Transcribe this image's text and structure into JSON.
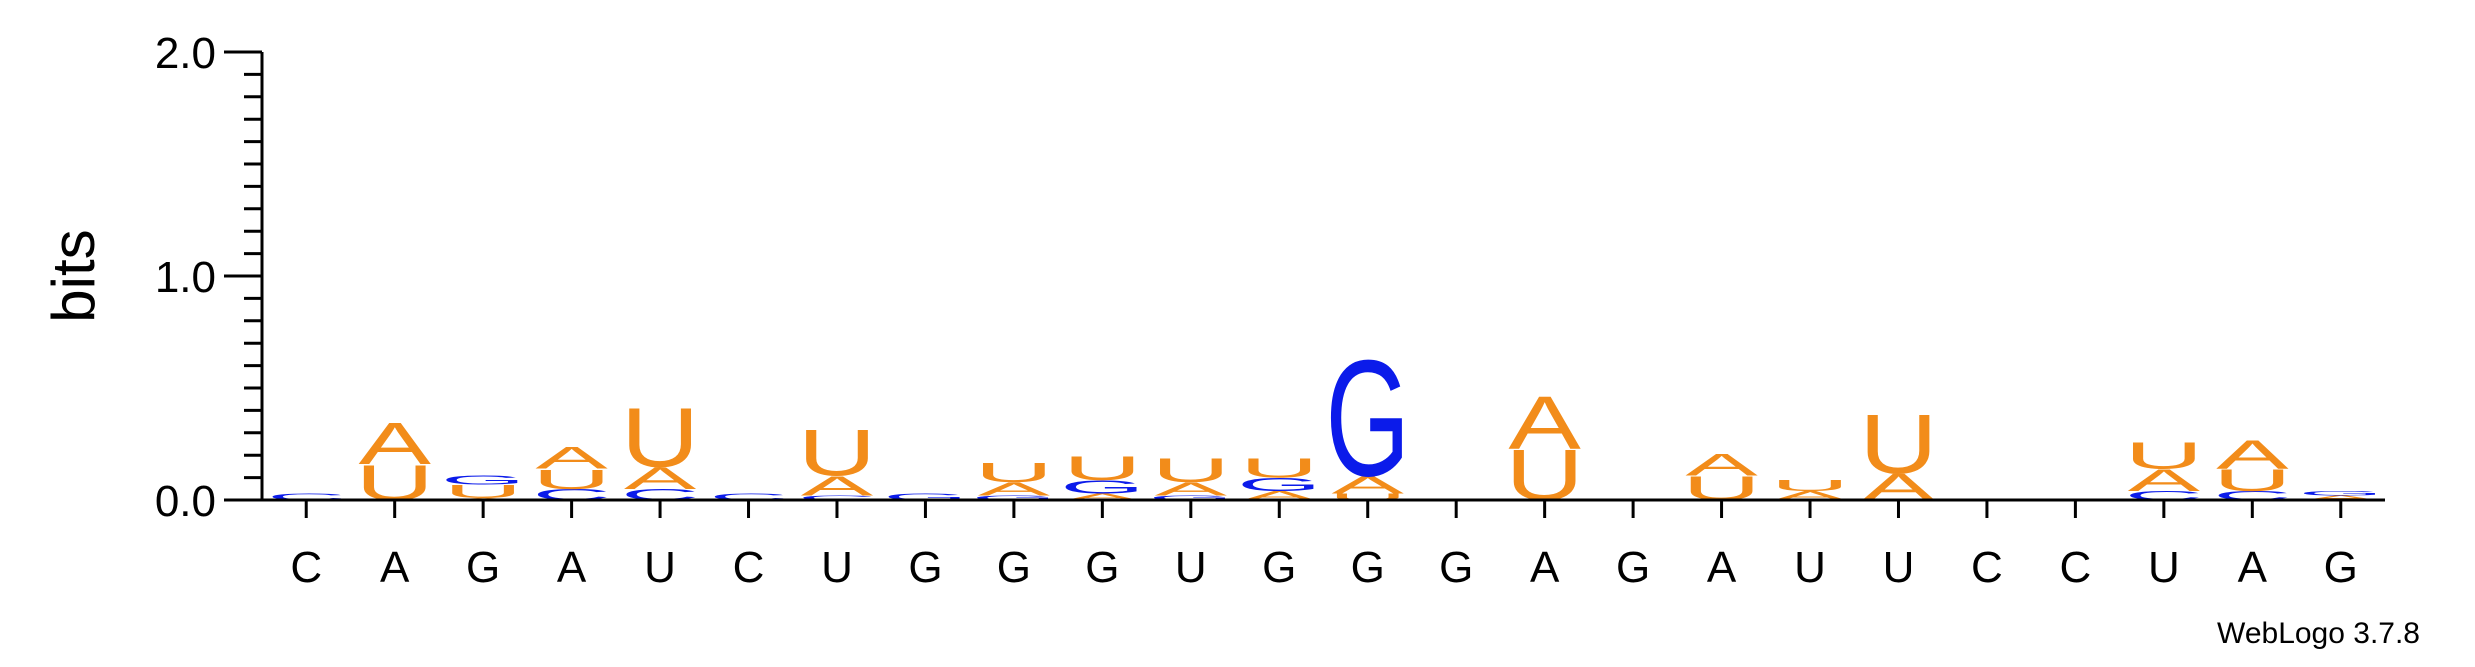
{
  "chart_data": {
    "type": "sequence-logo",
    "ylabel": "bits",
    "ylim": [
      0,
      2.0
    ],
    "yticks": [
      "0.0",
      "1.0",
      "2.0"
    ],
    "xtick_labels": [
      "C",
      "A",
      "G",
      "A",
      "U",
      "C",
      "U",
      "G",
      "G",
      "G",
      "U",
      "G",
      "G",
      "G",
      "A",
      "G",
      "A",
      "U",
      "U",
      "C",
      "C",
      "U",
      "A",
      "G"
    ],
    "credit": "WebLogo 3.7.8",
    "colors": {
      "A": "#f28c1a",
      "U": "#f28c1a",
      "G": "#0b1bea",
      "C": "#0b1bea"
    },
    "positions": [
      {
        "stack": [
          {
            "letter": "C",
            "height": 0.03
          }
        ]
      },
      {
        "stack": [
          {
            "letter": "U",
            "height": 0.16
          },
          {
            "letter": "A",
            "height": 0.19
          }
        ]
      },
      {
        "stack": [
          {
            "letter": "A",
            "height": 0.01
          },
          {
            "letter": "U",
            "height": 0.06
          },
          {
            "letter": "G",
            "height": 0.04
          }
        ]
      },
      {
        "stack": [
          {
            "letter": "C",
            "height": 0.05
          },
          {
            "letter": "U",
            "height": 0.09
          },
          {
            "letter": "A",
            "height": 0.1
          }
        ]
      },
      {
        "stack": [
          {
            "letter": "C",
            "height": 0.05
          },
          {
            "letter": "A",
            "height": 0.1
          },
          {
            "letter": "U",
            "height": 0.27
          }
        ]
      },
      {
        "stack": [
          {
            "letter": "C",
            "height": 0.03
          }
        ]
      },
      {
        "stack": [
          {
            "letter": "C",
            "height": 0.02
          },
          {
            "letter": "A",
            "height": 0.09
          },
          {
            "letter": "U",
            "height": 0.21
          }
        ]
      },
      {
        "stack": [
          {
            "letter": "G",
            "height": 0.03
          }
        ]
      },
      {
        "stack": [
          {
            "letter": "G",
            "height": 0.02
          },
          {
            "letter": "A",
            "height": 0.06
          },
          {
            "letter": "U",
            "height": 0.09
          }
        ]
      },
      {
        "stack": [
          {
            "letter": "A",
            "height": 0.03
          },
          {
            "letter": "G",
            "height": 0.06
          },
          {
            "letter": "U",
            "height": 0.11
          }
        ]
      },
      {
        "stack": [
          {
            "letter": "G",
            "height": 0.02
          },
          {
            "letter": "A",
            "height": 0.06
          },
          {
            "letter": "U",
            "height": 0.11
          }
        ]
      },
      {
        "stack": [
          {
            "letter": "A",
            "height": 0.04
          },
          {
            "letter": "G",
            "height": 0.06
          },
          {
            "letter": "U",
            "height": 0.09
          }
        ]
      },
      {
        "stack": [
          {
            "letter": "U",
            "height": 0.03
          },
          {
            "letter": "A",
            "height": 0.08
          },
          {
            "letter": "G",
            "height": 0.53
          }
        ]
      },
      {
        "stack": []
      },
      {
        "stack": [
          {
            "letter": "U",
            "height": 0.23
          },
          {
            "letter": "A",
            "height": 0.24
          }
        ]
      },
      {
        "stack": []
      },
      {
        "stack": [
          {
            "letter": "U",
            "height": 0.11
          },
          {
            "letter": "A",
            "height": 0.1
          }
        ]
      },
      {
        "stack": [
          {
            "letter": "A",
            "height": 0.04
          },
          {
            "letter": "U",
            "height": 0.05
          }
        ]
      },
      {
        "stack": [
          {
            "letter": "A",
            "height": 0.12
          },
          {
            "letter": "U",
            "height": 0.27
          }
        ]
      },
      {
        "stack": []
      },
      {
        "stack": []
      },
      {
        "stack": [
          {
            "letter": "C",
            "height": 0.04
          },
          {
            "letter": "A",
            "height": 0.1
          },
          {
            "letter": "U",
            "height": 0.12
          }
        ]
      },
      {
        "stack": [
          {
            "letter": "C",
            "height": 0.04
          },
          {
            "letter": "U",
            "height": 0.1
          },
          {
            "letter": "A",
            "height": 0.13
          }
        ]
      },
      {
        "stack": [
          {
            "letter": "A",
            "height": 0.02
          },
          {
            "letter": "G",
            "height": 0.02
          }
        ]
      }
    ]
  }
}
